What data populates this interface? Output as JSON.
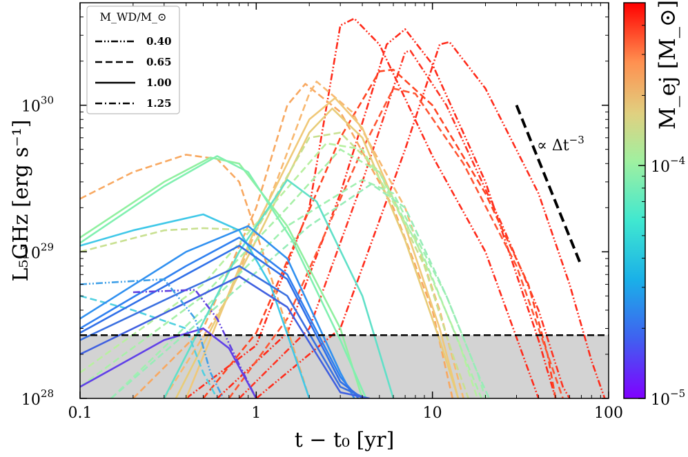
{
  "chart_data": {
    "type": "line",
    "title": "",
    "xlabel": "t − t₀ [yr]",
    "ylabel": "L₅GHz [erg s⁻¹]",
    "xscale": "log",
    "yscale": "log",
    "xlim": [
      0.1,
      100
    ],
    "ylim": [
      1e+28,
      5e+30
    ],
    "x_ticks": [
      {
        "value": 0.1,
        "label": "0.1"
      },
      {
        "value": 1,
        "label": "1"
      },
      {
        "value": 10,
        "label": "10"
      },
      {
        "value": 100,
        "label": "100"
      }
    ],
    "y_ticks": [
      {
        "value": 1e+28,
        "label": "10",
        "exp": "28"
      },
      {
        "value": 1e+29,
        "label": "10",
        "exp": "29"
      },
      {
        "value": 1e+30,
        "label": "10",
        "exp": "30"
      }
    ],
    "legend": {
      "placement": "top-left",
      "title": "M_WD/M_⊙",
      "entries": [
        {
          "label": "0.40",
          "style": "dashdotdot"
        },
        {
          "label": "0.65",
          "style": "dashed"
        },
        {
          "label": "1.00",
          "style": "solid"
        },
        {
          "label": "1.25",
          "style": "dashdot"
        }
      ]
    },
    "threshold": {
      "value": 2.7e+28,
      "style": "dashed",
      "shaded_below": true,
      "shade_color": "#d3d3d3"
    },
    "annotation": {
      "text": "∝ Δt",
      "exp": "−3",
      "line": [
        [
          30,
          1e+30
        ],
        [
          70,
          8e+28
        ]
      ]
    },
    "colorbar": {
      "label": "M_ej [M_⊙]",
      "scale": "log",
      "range": [
        1e-05,
        0.0005
      ],
      "ticks": [
        {
          "value": 1e-05,
          "label": "10",
          "exp": "−5"
        },
        {
          "value": 0.0001,
          "label": "10",
          "exp": "−4"
        }
      ],
      "colormap": "rainbow"
    },
    "series": [
      {
        "color": "#ff2a1a",
        "style": "dashdotdot",
        "points": [
          [
            0.4,
            1e+28
          ],
          [
            1,
            2.3e+28
          ],
          [
            2,
            2e+29
          ],
          [
            3.0,
            3.5e+30
          ],
          [
            3.6,
            3.9e+30
          ],
          [
            5,
            2.6e+30
          ],
          [
            10,
            4.5e+29
          ],
          [
            20,
            1e+29
          ],
          [
            30,
            2.6e+28
          ],
          [
            40,
            1e+28
          ]
        ]
      },
      {
        "color": "#ff2a1a",
        "style": "dashdotdot",
        "points": [
          [
            0.6,
            1e+28
          ],
          [
            1.5,
            2.8e+28
          ],
          [
            3,
            2.5e+29
          ],
          [
            5.5,
            2.6e+30
          ],
          [
            7,
            3.3e+30
          ],
          [
            10,
            1.9e+30
          ],
          [
            20,
            3e+29
          ],
          [
            30,
            7e+28
          ],
          [
            40,
            2.5e+28
          ],
          [
            50,
            1e+28
          ]
        ]
      },
      {
        "color": "#ff3322",
        "style": "dashdotdot",
        "points": [
          [
            0.8,
            1e+28
          ],
          [
            2,
            3e+28
          ],
          [
            4,
            3e+29
          ],
          [
            7,
            2.3e+30
          ],
          [
            7.5,
            2.35e+30
          ],
          [
            12,
            1e+30
          ],
          [
            25,
            1.5e+29
          ],
          [
            40,
            4e+28
          ],
          [
            55,
            1.2e+28
          ],
          [
            60,
            1e+28
          ]
        ]
      },
      {
        "color": "#ff2a1a",
        "style": "dashdotdot",
        "points": [
          [
            1,
            1e+28
          ],
          [
            3,
            3e+28
          ],
          [
            7,
            5e+29
          ],
          [
            11,
            2.6e+30
          ],
          [
            12.5,
            2.7e+30
          ],
          [
            20,
            1.3e+30
          ],
          [
            40,
            2.5e+29
          ],
          [
            60,
            6e+28
          ],
          [
            80,
            1.8e+28
          ],
          [
            95,
            1e+28
          ]
        ]
      },
      {
        "color": "#ff4422",
        "style": "dashed",
        "points": [
          [
            0.5,
            1e+28
          ],
          [
            1,
            2.8e+28
          ],
          [
            3,
            6e+29
          ],
          [
            5,
            1.7e+30
          ],
          [
            6,
            1.75e+30
          ],
          [
            10,
            1e+30
          ],
          [
            20,
            2.5e+29
          ],
          [
            35,
            6e+28
          ],
          [
            45,
            2e+28
          ],
          [
            50,
            1e+28
          ]
        ]
      },
      {
        "color": "#ff5533",
        "style": "dashed",
        "points": [
          [
            0.7,
            1e+28
          ],
          [
            1.5,
            3.5e+28
          ],
          [
            4,
            5e+29
          ],
          [
            6,
            1.3e+30
          ],
          [
            8,
            1.2e+30
          ],
          [
            15,
            4e+29
          ],
          [
            30,
            8e+28
          ],
          [
            45,
            2e+28
          ],
          [
            55,
            1e+28
          ]
        ]
      },
      {
        "color": "#f8a860",
        "style": "dashed",
        "points": [
          [
            0.1,
            2.3e+29
          ],
          [
            0.2,
            3.5e+29
          ],
          [
            0.4,
            4.6e+29
          ],
          [
            0.6,
            4.3e+29
          ],
          [
            0.8,
            3e+29
          ],
          [
            1.2,
            7e+28
          ],
          [
            1.8,
            1.5e+28
          ],
          [
            2.0,
            1e+28
          ]
        ]
      },
      {
        "color": "#f8a860",
        "style": "dashed",
        "points": [
          [
            0.2,
            1e+28
          ],
          [
            0.5,
            3e+28
          ],
          [
            1,
            2e+29
          ],
          [
            1.5,
            1e+30
          ],
          [
            1.9,
            1.4e+30
          ],
          [
            3,
            9e+29
          ],
          [
            6,
            2e+29
          ],
          [
            10,
            4e+28
          ],
          [
            13,
            1e+28
          ]
        ]
      },
      {
        "color": "#f8b870",
        "style": "dashed",
        "points": [
          [
            0.3,
            1e+28
          ],
          [
            0.7,
            5e+28
          ],
          [
            1.3,
            3e+29
          ],
          [
            2,
            1.2e+30
          ],
          [
            2.2,
            1.45e+30
          ],
          [
            3.5,
            9e+29
          ],
          [
            7,
            2e+29
          ],
          [
            11,
            4e+28
          ],
          [
            15,
            1e+28
          ]
        ]
      },
      {
        "color": "#f0c878",
        "style": "solid",
        "points": [
          [
            0.4,
            1e+28
          ],
          [
            1,
            1.5e+29
          ],
          [
            2,
            8e+29
          ],
          [
            2.8,
            1.12e+30
          ],
          [
            4,
            7e+29
          ],
          [
            7,
            1.5e+29
          ],
          [
            11,
            3e+28
          ],
          [
            14,
            1e+28
          ]
        ]
      },
      {
        "color": "#e8cc78",
        "style": "solid",
        "points": [
          [
            0.35,
            1e+28
          ],
          [
            1,
            1.2e+29
          ],
          [
            2,
            6.5e+29
          ],
          [
            2.7,
            9.5e+29
          ],
          [
            4,
            6e+29
          ],
          [
            7,
            1.2e+29
          ],
          [
            11,
            2.5e+28
          ],
          [
            14,
            1e+28
          ]
        ]
      },
      {
        "color": "#c8e090",
        "style": "dashed",
        "points": [
          [
            0.1,
            1e+29
          ],
          [
            0.3,
            1.4e+29
          ],
          [
            0.5,
            1.45e+29
          ],
          [
            1,
            1.4e+29
          ],
          [
            2,
            6e+29
          ],
          [
            3,
            6.5e+29
          ],
          [
            5,
            3.5e+29
          ],
          [
            9,
            8e+28
          ],
          [
            13,
            2e+28
          ],
          [
            16,
            1e+28
          ]
        ]
      },
      {
        "color": "#b8f0a0",
        "style": "dashed",
        "points": [
          [
            0.1,
            1.5e+28
          ],
          [
            0.5,
            6e+28
          ],
          [
            1.2,
            2e+29
          ],
          [
            2.5,
            5.5e+29
          ],
          [
            4,
            5e+29
          ],
          [
            8,
            1.2e+29
          ],
          [
            14,
            2.5e+28
          ],
          [
            18,
            1e+28
          ]
        ]
      },
      {
        "color": "#a8f0a8",
        "style": "dashed",
        "points": [
          [
            0.1,
            1.2e+28
          ],
          [
            0.5,
            5e+28
          ],
          [
            1.5,
            2e+29
          ],
          [
            3,
            5e+29
          ],
          [
            5,
            3.5e+29
          ],
          [
            9,
            9e+28
          ],
          [
            15,
            2e+28
          ],
          [
            19,
            1e+28
          ]
        ]
      },
      {
        "color": "#a0f0b0",
        "style": "dashed",
        "points": [
          [
            0.15,
            1e+28
          ],
          [
            0.6,
            5e+28
          ],
          [
            1.5,
            1.5e+29
          ],
          [
            4,
            3.1e+29
          ],
          [
            6,
            2.5e+29
          ],
          [
            12,
            5e+28
          ],
          [
            18,
            1.5e+28
          ],
          [
            20,
            1e+28
          ]
        ]
      },
      {
        "color": "#98ecb8",
        "style": "dashed",
        "points": [
          [
            0.15,
            1e+28
          ],
          [
            0.7,
            5e+28
          ],
          [
            2,
            1.5e+29
          ],
          [
            4.5,
            2.9e+29
          ],
          [
            7,
            2e+29
          ],
          [
            12,
            5e+28
          ],
          [
            18,
            1.5e+28
          ],
          [
            21,
            1e+28
          ]
        ]
      },
      {
        "color": "#90f0a0",
        "style": "solid",
        "points": [
          [
            0.1,
            1.25e+29
          ],
          [
            0.3,
            3e+29
          ],
          [
            0.55,
            4.4e+29
          ],
          [
            0.8,
            4e+29
          ],
          [
            1.5,
            1.5e+29
          ],
          [
            3,
            3e+28
          ],
          [
            4,
            1e+28
          ]
        ]
      },
      {
        "color": "#80f0b0",
        "style": "solid",
        "points": [
          [
            0.1,
            1.15e+29
          ],
          [
            0.3,
            2.8e+29
          ],
          [
            0.6,
            4.5e+29
          ],
          [
            0.9,
            3.5e+29
          ],
          [
            1.6,
            1.2e+29
          ],
          [
            3,
            2.5e+28
          ],
          [
            4.2,
            1e+28
          ]
        ]
      },
      {
        "color": "#60e0c8",
        "style": "solid",
        "points": [
          [
            0.3,
            1e+28
          ],
          [
            0.8,
            1e+29
          ],
          [
            1.5,
            3.1e+29
          ],
          [
            2.2,
            2.2e+29
          ],
          [
            4,
            5e+28
          ],
          [
            6,
            1e+28
          ]
        ]
      },
      {
        "color": "#40c8e8",
        "style": "solid",
        "points": [
          [
            0.1,
            1.1e+29
          ],
          [
            0.2,
            1.4e+29
          ],
          [
            0.5,
            1.8e+29
          ],
          [
            0.8,
            1.4e+29
          ],
          [
            1.2,
            6e+28
          ],
          [
            2,
            1e+28
          ]
        ]
      },
      {
        "color": "#50d0e0",
        "style": "dashed",
        "points": [
          [
            0.1,
            5e+28
          ],
          [
            0.2,
            4e+28
          ],
          [
            0.4,
            3e+28
          ],
          [
            0.5,
            1.5e+28
          ],
          [
            0.6,
            1e+28
          ]
        ]
      },
      {
        "color": "#3090f0",
        "style": "solid",
        "points": [
          [
            0.1,
            3.5e+28
          ],
          [
            0.4,
            1e+29
          ],
          [
            0.9,
            1.5e+29
          ],
          [
            1.5,
            9e+28
          ],
          [
            3,
            1.5e+28
          ],
          [
            3.6,
            1e+28
          ]
        ]
      },
      {
        "color": "#3080f0",
        "style": "solid",
        "points": [
          [
            0.1,
            3e+28
          ],
          [
            0.4,
            8e+28
          ],
          [
            0.8,
            1.25e+29
          ],
          [
            1.5,
            7e+28
          ],
          [
            3,
            1.4e+28
          ],
          [
            3.8,
            1e+28
          ]
        ]
      },
      {
        "color": "#3070e8",
        "style": "solid",
        "points": [
          [
            0.1,
            2.8e+28
          ],
          [
            0.4,
            7e+28
          ],
          [
            0.8,
            1.1e+29
          ],
          [
            1.5,
            6.5e+28
          ],
          [
            3,
            1.3e+28
          ],
          [
            4,
            1e+28
          ]
        ]
      },
      {
        "color": "#3a70e0",
        "style": "solid",
        "points": [
          [
            0.1,
            2.5e+28
          ],
          [
            0.4,
            5.5e+28
          ],
          [
            0.8,
            8e+28
          ],
          [
            1.5,
            5e+28
          ],
          [
            3,
            1.2e+28
          ],
          [
            4.2,
            1e+28
          ]
        ]
      },
      {
        "color": "#4060e0",
        "style": "solid",
        "points": [
          [
            0.1,
            2e+28
          ],
          [
            0.4,
            4.5e+28
          ],
          [
            0.8,
            6.8e+28
          ],
          [
            1.5,
            4.2e+28
          ],
          [
            3,
            1.1e+28
          ],
          [
            4.4,
            1e+28
          ]
        ]
      },
      {
        "color": "#6040e8",
        "style": "solid",
        "points": [
          [
            0.1,
            1.2e+28
          ],
          [
            0.3,
            2.5e+28
          ],
          [
            0.5,
            3e+28
          ],
          [
            0.7,
            2.2e+28
          ],
          [
            1.0,
            1e+28
          ]
        ]
      },
      {
        "color": "#6040e0",
        "style": "dashdotdot",
        "points": [
          [
            0.2,
            5.3e+28
          ],
          [
            0.45,
            5.5e+28
          ],
          [
            0.6,
            3.5e+28
          ],
          [
            0.8,
            1.7e+28
          ],
          [
            1.0,
            1e+28
          ]
        ]
      },
      {
        "color": "#40a0e8",
        "style": "dashdotdot",
        "points": [
          [
            0.1,
            6e+28
          ],
          [
            0.3,
            6.5e+28
          ],
          [
            0.45,
            3.5e+28
          ],
          [
            0.55,
            1.5e+28
          ],
          [
            0.65,
            1e+28
          ]
        ]
      }
    ]
  }
}
